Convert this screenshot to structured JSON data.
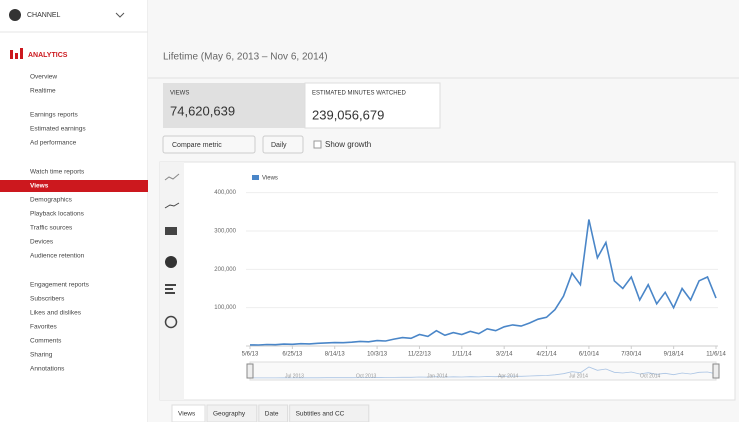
{
  "sidebar": {
    "channel": "CHANNEL",
    "section": "ANALYTICS",
    "items": [
      {
        "label": "Overview"
      },
      {
        "label": "Realtime"
      },
      {
        "label": "Earnings reports"
      },
      {
        "label": "Estimated earnings"
      },
      {
        "label": "Ad performance"
      },
      {
        "label": "Watch time reports"
      },
      {
        "label": "Views",
        "selected": true
      },
      {
        "label": "Demographics"
      },
      {
        "label": "Playback locations"
      },
      {
        "label": "Traffic sources"
      },
      {
        "label": "Devices"
      },
      {
        "label": "Audience retention"
      },
      {
        "label": "Engagement reports"
      },
      {
        "label": "Subscribers"
      },
      {
        "label": "Likes and dislikes"
      },
      {
        "label": "Favorites"
      },
      {
        "label": "Comments"
      },
      {
        "label": "Sharing"
      },
      {
        "label": "Annotations"
      }
    ]
  },
  "header": {
    "title": "Lifetime (May 6, 2013 – Nov 6, 2014)"
  },
  "metrics": [
    {
      "label": "VIEWS",
      "value": "74,620,639"
    },
    {
      "label": "ESTIMATED MINUTES WATCHED",
      "value": "239,056,679"
    }
  ],
  "controls": {
    "compare": "Compare metric",
    "interval": "Daily",
    "growth": "Show growth"
  },
  "tabs": [
    "Views",
    "Geography",
    "Date",
    "Subtitles and CC"
  ],
  "chart_data": {
    "type": "line",
    "categories": [
      "5/6/13",
      null,
      null,
      null,
      null,
      "6/25/13",
      null,
      null,
      null,
      null,
      "8/14/13",
      null,
      null,
      null,
      null,
      "10/3/13",
      null,
      null,
      null,
      null,
      "11/22/13",
      null,
      null,
      null,
      null,
      "1/11/14",
      null,
      null,
      null,
      null,
      "3/2/14",
      null,
      null,
      null,
      null,
      "4/21/14",
      null,
      null,
      null,
      null,
      "6/10/14",
      null,
      null,
      null,
      null,
      "7/30/14",
      null,
      null,
      null,
      null,
      "9/18/14",
      null,
      null,
      null,
      null,
      "11/6/14"
    ],
    "series": [
      {
        "name": "Views",
        "color": "#4a86c8",
        "values": [
          3000,
          2500,
          4000,
          3500,
          5000,
          4500,
          6000,
          5500,
          7000,
          8000,
          9000,
          8500,
          10000,
          12000,
          11000,
          14000,
          13000,
          18000,
          22000,
          20000,
          30000,
          25000,
          40000,
          28000,
          35000,
          30000,
          38000,
          32000,
          45000,
          40000,
          50000,
          55000,
          52000,
          60000,
          70000,
          75000,
          95000,
          130000,
          190000,
          160000,
          330000,
          230000,
          270000,
          170000,
          150000,
          180000,
          120000,
          160000,
          110000,
          140000,
          100000,
          150000,
          120000,
          170000,
          180000,
          125000
        ]
      }
    ],
    "ylim": [
      0,
      420000
    ],
    "yticks": [
      {
        "value": 100000,
        "label": "100,000"
      },
      {
        "value": 200000,
        "label": "200,000"
      },
      {
        "value": 300000,
        "label": "300,000"
      },
      {
        "value": 400000,
        "label": "400,000"
      }
    ],
    "navigator_labels": [
      "Jul 2013",
      "Oct 2013",
      "Jan 2014",
      "Apr 2014",
      "Jul 2014",
      "Oct 2014"
    ],
    "legend": "top-left"
  }
}
